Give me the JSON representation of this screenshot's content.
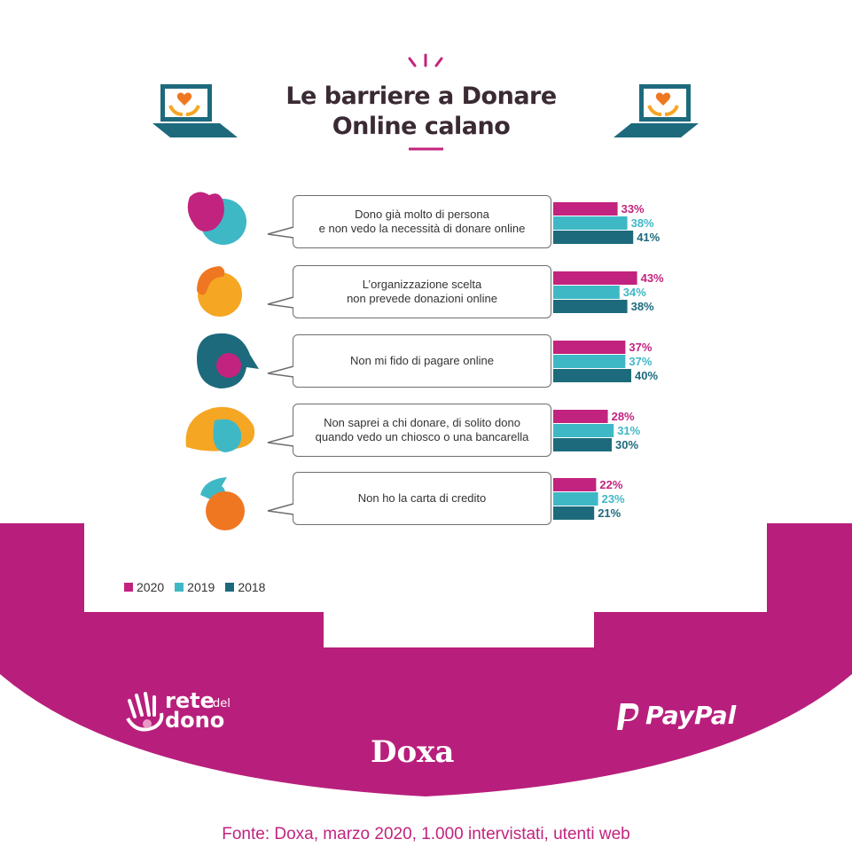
{
  "title_line1": "Le barriere a Donare",
  "title_line2": "Online calano",
  "source": "Fonte: Doxa, marzo 2020, 1.000 intervistati, utenti web",
  "logos": {
    "rete": "rete",
    "rete_sub": "del",
    "dono": "dono",
    "doxa": "Doxa",
    "paypal": "PayPal"
  },
  "colors": {
    "2020": "#c2237e",
    "2019": "#3fb8c6",
    "2018": "#1d6a7c",
    "band": "#b81f7c"
  },
  "icons": [
    "hand-heart-laptop-icon",
    "woman-avatar-icon",
    "man-avatar-icon",
    "woman-avatar-icon",
    "woman-avatar-icon",
    "man-avatar-icon"
  ],
  "chart_data": {
    "type": "bar",
    "orientation": "horizontal",
    "categories": [
      "Dono già molto di persona\ne non vedo la necessità di donare online",
      "L’organizzazione scelta\nnon prevede donazioni online",
      "Non mi fido di pagare online",
      "Non saprei a chi donare, di solito dono\nquando vedo un chiosco o una bancarella",
      "Non ho la carta di credito"
    ],
    "series": [
      {
        "name": "2020",
        "values": [
          33,
          43,
          37,
          28,
          22
        ]
      },
      {
        "name": "2019",
        "values": [
          38,
          34,
          37,
          31,
          23
        ]
      },
      {
        "name": "2018",
        "values": [
          41,
          38,
          40,
          30,
          21
        ]
      }
    ],
    "unit": "%",
    "legend": "bottom-left"
  }
}
